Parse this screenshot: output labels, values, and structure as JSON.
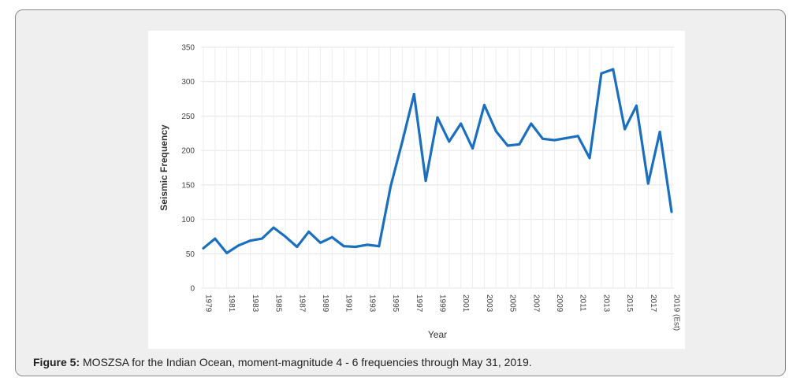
{
  "caption": {
    "label": "Figure 5:",
    "text": " MOSZSA for the Indian Ocean, moment-magnitude 4 - 6 frequencies through May 31, 2019."
  },
  "chart_data": {
    "type": "line",
    "title": "",
    "xlabel": "Year",
    "ylabel": "Seismic Frequency",
    "ylim": [
      0,
      350
    ],
    "yticks": [
      0,
      50,
      100,
      150,
      200,
      250,
      300,
      350
    ],
    "grid": true,
    "color": "#1a6fbf",
    "x": [
      "1979",
      "1980",
      "1981",
      "1982",
      "1983",
      "1984",
      "1985",
      "1986",
      "1987",
      "1988",
      "1989",
      "1990",
      "1991",
      "1992",
      "1993",
      "1994",
      "1995",
      "1996",
      "1997",
      "1998",
      "1999",
      "2000",
      "2001",
      "2002",
      "2003",
      "2004",
      "2005",
      "2006",
      "2007",
      "2008",
      "2009",
      "2010",
      "2011",
      "2012",
      "2013",
      "2014",
      "2015",
      "2016",
      "2017",
      "2018",
      "2019 (Est)"
    ],
    "x_tick_labels": [
      "1979",
      "1981",
      "1983",
      "1985",
      "1987",
      "1989",
      "1991",
      "1993",
      "1995",
      "1997",
      "1999",
      "2001",
      "2003",
      "2005",
      "2007",
      "2009",
      "2011",
      "2013",
      "2015",
      "2017",
      "2019 (Est)"
    ],
    "series": [
      {
        "name": "Seismic Frequency",
        "values": [
          58,
          72,
          51,
          62,
          69,
          72,
          88,
          75,
          60,
          82,
          66,
          74,
          61,
          60,
          63,
          61,
          148,
          213,
          282,
          156,
          248,
          213,
          239,
          203,
          266,
          228,
          207,
          209,
          239,
          217,
          215,
          218,
          221,
          189,
          312,
          318,
          231,
          265,
          152,
          227,
          111
        ]
      }
    ]
  }
}
